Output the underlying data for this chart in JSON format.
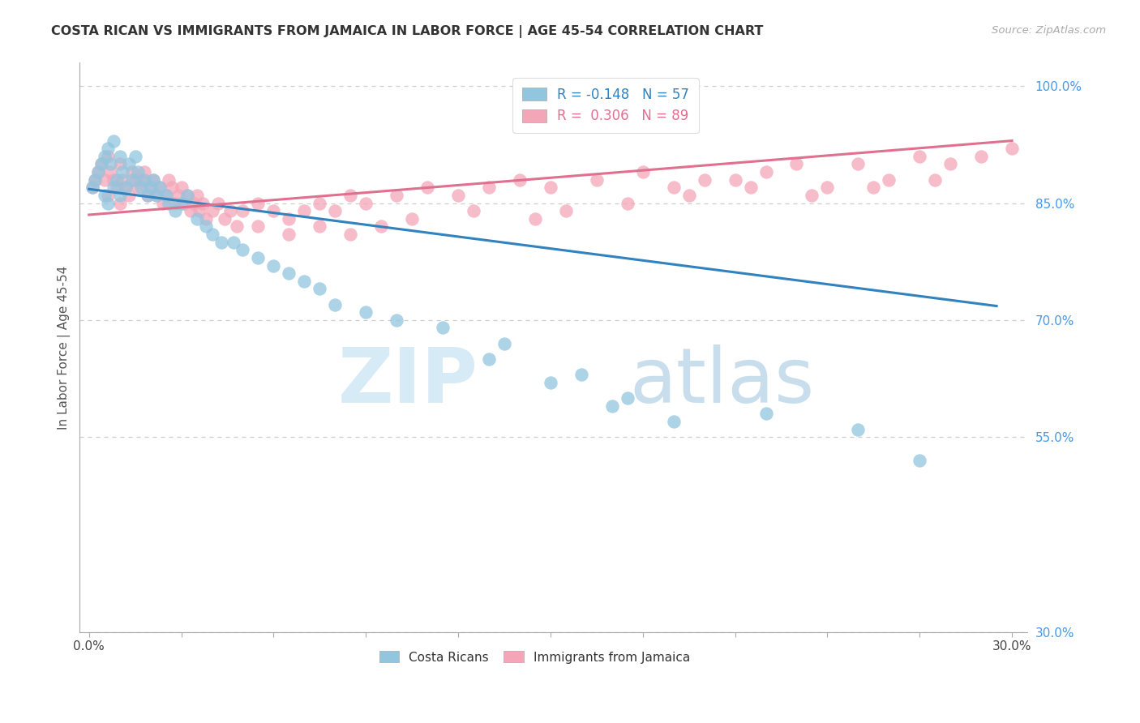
{
  "title": "COSTA RICAN VS IMMIGRANTS FROM JAMAICA IN LABOR FORCE | AGE 45-54 CORRELATION CHART",
  "source": "Source: ZipAtlas.com",
  "ylabel": "In Labor Force | Age 45-54",
  "right_yticks": [
    "100.0%",
    "85.0%",
    "70.0%",
    "55.0%",
    "30.0%"
  ],
  "right_ytick_vals": [
    1.0,
    0.85,
    0.7,
    0.55,
    0.3
  ],
  "xlim": [
    -0.003,
    0.305
  ],
  "ylim": [
    0.3,
    1.03
  ],
  "blue_R": -0.148,
  "blue_N": 57,
  "pink_R": 0.306,
  "pink_N": 89,
  "blue_color": "#92C5DE",
  "pink_color": "#F4A6B8",
  "blue_line_color": "#3182BD",
  "pink_line_color": "#E07090",
  "watermark_zip": "ZIP",
  "watermark_atlas": "atlas",
  "blue_line_x0": 0.0,
  "blue_line_y0": 0.868,
  "blue_line_x1": 0.295,
  "blue_line_y1": 0.718,
  "pink_line_x0": 0.0,
  "pink_line_y0": 0.835,
  "pink_line_x1": 0.3,
  "pink_line_y1": 0.93,
  "blue_scatter_x": [
    0.001,
    0.002,
    0.003,
    0.004,
    0.005,
    0.005,
    0.006,
    0.006,
    0.007,
    0.008,
    0.008,
    0.009,
    0.01,
    0.01,
    0.011,
    0.012,
    0.013,
    0.014,
    0.015,
    0.016,
    0.017,
    0.018,
    0.019,
    0.02,
    0.021,
    0.022,
    0.023,
    0.025,
    0.026,
    0.028,
    0.03,
    0.032,
    0.035,
    0.038,
    0.04,
    0.043,
    0.047,
    0.05,
    0.055,
    0.06,
    0.065,
    0.07,
    0.075,
    0.08,
    0.09,
    0.1,
    0.115,
    0.13,
    0.15,
    0.17,
    0.19,
    0.22,
    0.25,
    0.16,
    0.175,
    0.135,
    0.27
  ],
  "blue_scatter_y": [
    0.87,
    0.88,
    0.89,
    0.9,
    0.91,
    0.86,
    0.92,
    0.85,
    0.9,
    0.93,
    0.87,
    0.88,
    0.91,
    0.86,
    0.89,
    0.87,
    0.9,
    0.88,
    0.91,
    0.89,
    0.87,
    0.88,
    0.86,
    0.87,
    0.88,
    0.86,
    0.87,
    0.86,
    0.85,
    0.84,
    0.85,
    0.86,
    0.83,
    0.82,
    0.81,
    0.8,
    0.8,
    0.79,
    0.78,
    0.77,
    0.76,
    0.75,
    0.74,
    0.72,
    0.71,
    0.7,
    0.69,
    0.65,
    0.62,
    0.59,
    0.57,
    0.58,
    0.56,
    0.63,
    0.6,
    0.67,
    0.52
  ],
  "pink_scatter_x": [
    0.001,
    0.002,
    0.003,
    0.004,
    0.005,
    0.006,
    0.006,
    0.007,
    0.008,
    0.009,
    0.01,
    0.01,
    0.011,
    0.012,
    0.013,
    0.014,
    0.015,
    0.016,
    0.017,
    0.018,
    0.019,
    0.02,
    0.021,
    0.022,
    0.023,
    0.024,
    0.025,
    0.026,
    0.027,
    0.028,
    0.029,
    0.03,
    0.031,
    0.032,
    0.033,
    0.034,
    0.035,
    0.036,
    0.037,
    0.038,
    0.04,
    0.042,
    0.044,
    0.046,
    0.048,
    0.05,
    0.055,
    0.06,
    0.065,
    0.07,
    0.075,
    0.08,
    0.085,
    0.09,
    0.1,
    0.11,
    0.12,
    0.13,
    0.14,
    0.15,
    0.165,
    0.18,
    0.2,
    0.22,
    0.23,
    0.25,
    0.27,
    0.28,
    0.29,
    0.3,
    0.19,
    0.21,
    0.24,
    0.26,
    0.155,
    0.175,
    0.195,
    0.215,
    0.235,
    0.255,
    0.275,
    0.145,
    0.125,
    0.105,
    0.095,
    0.085,
    0.075,
    0.065,
    0.055
  ],
  "pink_scatter_y": [
    0.87,
    0.88,
    0.89,
    0.9,
    0.88,
    0.91,
    0.86,
    0.89,
    0.88,
    0.87,
    0.9,
    0.85,
    0.88,
    0.87,
    0.86,
    0.89,
    0.88,
    0.87,
    0.88,
    0.89,
    0.86,
    0.87,
    0.88,
    0.86,
    0.87,
    0.85,
    0.86,
    0.88,
    0.87,
    0.85,
    0.86,
    0.87,
    0.85,
    0.86,
    0.84,
    0.85,
    0.86,
    0.84,
    0.85,
    0.83,
    0.84,
    0.85,
    0.83,
    0.84,
    0.82,
    0.84,
    0.85,
    0.84,
    0.83,
    0.84,
    0.85,
    0.84,
    0.86,
    0.85,
    0.86,
    0.87,
    0.86,
    0.87,
    0.88,
    0.87,
    0.88,
    0.89,
    0.88,
    0.89,
    0.9,
    0.9,
    0.91,
    0.9,
    0.91,
    0.92,
    0.87,
    0.88,
    0.87,
    0.88,
    0.84,
    0.85,
    0.86,
    0.87,
    0.86,
    0.87,
    0.88,
    0.83,
    0.84,
    0.83,
    0.82,
    0.81,
    0.82,
    0.81,
    0.82
  ]
}
